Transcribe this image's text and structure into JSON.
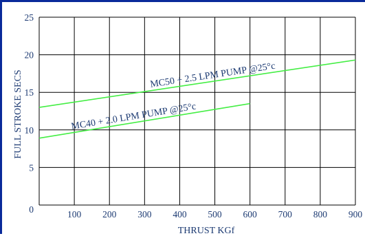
{
  "chart_data": {
    "type": "line",
    "xlabel": "THRUST KGf",
    "ylabel": "FULL STROKE SECS",
    "xlim": [
      0,
      900
    ],
    "ylim": [
      0,
      25
    ],
    "x_ticks": [
      "0",
      "100",
      "200",
      "300",
      "400",
      "500",
      "600",
      "700",
      "800",
      "900"
    ],
    "y_ticks": [
      "0",
      "5",
      "10",
      "15",
      "20",
      "25"
    ],
    "grid": true,
    "line_color": "#44ee44",
    "grid_color": "#000000",
    "text_color": "#1c3a72",
    "frame_color": "#0a2a9a",
    "series": [
      {
        "name": "MC50 + 2.5 LPM PUMP @25°c",
        "x": [
          0,
          900
        ],
        "values": [
          13.0,
          19.3
        ]
      },
      {
        "name": "MC40 + 2.0 LPM PUMP @25°c",
        "x": [
          0,
          600
        ],
        "values": [
          8.9,
          13.5
        ]
      }
    ]
  }
}
